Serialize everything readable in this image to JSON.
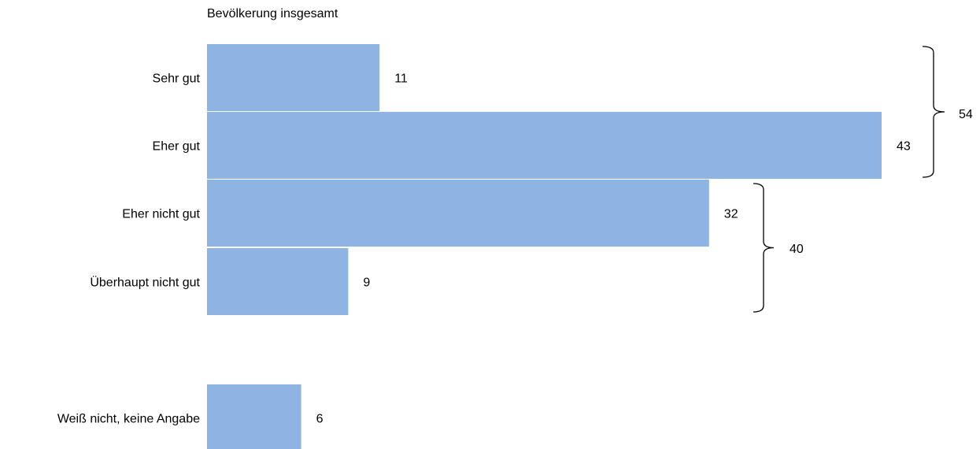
{
  "chart_data": {
    "type": "bar",
    "orientation": "horizontal",
    "title": "Bevölkerung insgesamt",
    "categories": [
      "Sehr gut",
      "Eher gut",
      "Eher nicht gut",
      "Überhaupt nicht gut",
      "Weiß nicht, keine Angabe"
    ],
    "values": [
      11,
      43,
      32,
      9,
      6
    ],
    "value_labels": [
      "11",
      "43",
      "32",
      "9",
      "6"
    ],
    "groups": [
      {
        "members": [
          "Sehr gut",
          "Eher gut"
        ],
        "total": 54,
        "label": "54"
      },
      {
        "members": [
          "Eher nicht gut",
          "Überhaupt nicht gut"
        ],
        "total": 40,
        "label": "40"
      }
    ],
    "bar_color": "#8eb4e3",
    "grid": false,
    "legend": "none"
  }
}
